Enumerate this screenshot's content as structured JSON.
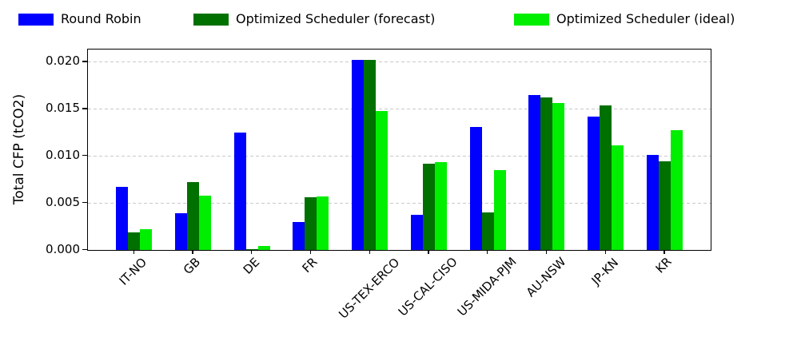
{
  "chart_data": {
    "type": "bar",
    "title": "",
    "xlabel": "",
    "ylabel": "Total CFP (tCO2)",
    "categories": [
      "IT-NO",
      "GB",
      "DE",
      "FR",
      "US-TEX-ERCO",
      "US-CAL-CISO",
      "US-MIDA-PJM",
      "AU-NSW",
      "JP-KN",
      "KR"
    ],
    "series": [
      {
        "name": "Round Robin",
        "color": "#0000ff",
        "values": [
          0.0067,
          0.0039,
          0.0125,
          0.003,
          0.0202,
          0.0037,
          0.0131,
          0.0165,
          0.0142,
          0.0101
        ]
      },
      {
        "name": "Optimized Scheduler (forecast)",
        "color": "#007000",
        "values": [
          0.0019,
          0.0072,
          0.0001,
          0.0056,
          0.0202,
          0.0092,
          0.004,
          0.0162,
          0.0154,
          0.0094
        ]
      },
      {
        "name": "Optimized Scheduler (ideal)",
        "color": "#00ee00",
        "values": [
          0.0022,
          0.0058,
          0.0004,
          0.0057,
          0.0148,
          0.0093,
          0.0085,
          0.0156,
          0.0111,
          0.0127
        ]
      }
    ],
    "ylim": [
      0,
      0.0213
    ],
    "ytick_values": [
      0,
      0.005,
      0.01,
      0.015,
      0.02
    ],
    "ytick_labels": [
      "0.000",
      "0.005",
      "0.010",
      "0.015",
      "0.020"
    ],
    "grid": "horizontal-dashed",
    "grid_color": "#c9c9c9",
    "legend_position": "top",
    "x_tick_rotation_deg": 45
  }
}
